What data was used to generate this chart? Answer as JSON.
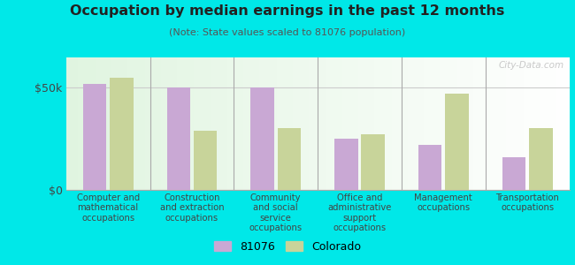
{
  "title": "Occupation by median earnings in the past 12 months",
  "subtitle": "(Note: State values scaled to 81076 population)",
  "categories": [
    "Computer and\nmathematical\noccupations",
    "Construction\nand extraction\noccupations",
    "Community\nand social\nservice\noccupations",
    "Office and\nadministrative\nsupport\noccupations",
    "Management\noccupations",
    "Transportation\noccupations"
  ],
  "values_81076": [
    52000,
    50000,
    50000,
    25000,
    22000,
    16000
  ],
  "values_colorado": [
    55000,
    29000,
    30000,
    27000,
    47000,
    30000
  ],
  "color_81076": "#c9a8d4",
  "color_colorado": "#c8d49a",
  "yticks": [
    0,
    50000
  ],
  "ytick_labels": [
    "$0",
    "$50k"
  ],
  "ylim": [
    0,
    65000
  ],
  "background_color_tl": "#e8f5e0",
  "background_color_br": "#f8fff0",
  "outer_background": "#00e8e8",
  "watermark": "City-Data.com",
  "legend_label_1": "81076",
  "legend_label_2": "Colorado",
  "bar_width": 0.28,
  "title_color": "#222222",
  "subtitle_color": "#555555",
  "tick_label_color": "#444444"
}
